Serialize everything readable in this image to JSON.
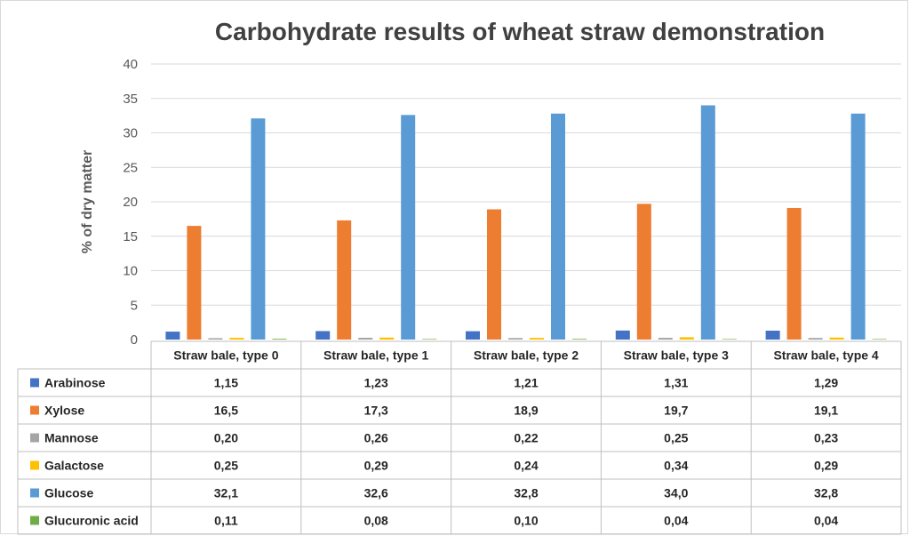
{
  "chart_data": {
    "type": "bar",
    "title": "Carbohydrate results of wheat straw demonstration",
    "ylabel": "% of dry matter",
    "ylim": [
      0,
      40
    ],
    "yticks": [
      "0",
      "5",
      "10",
      "15",
      "20",
      "25",
      "30",
      "35",
      "40"
    ],
    "grid": true,
    "legend": "data-table",
    "categories": [
      "Straw bale, type 0",
      "Straw bale, type 1",
      "Straw bale, type 2",
      "Straw bale, type 3",
      "Straw bale, type 4"
    ],
    "series": [
      {
        "name": "Arabinose",
        "color": "#4472c4",
        "values": [
          1.15,
          1.23,
          1.21,
          1.31,
          1.29
        ],
        "labels": [
          "1,15",
          "1,23",
          "1,21",
          "1,31",
          "1,29"
        ]
      },
      {
        "name": "Xylose",
        "color": "#ed7d31",
        "values": [
          16.5,
          17.3,
          18.9,
          19.7,
          19.1
        ],
        "labels": [
          "16,5",
          "17,3",
          "18,9",
          "19,7",
          "19,1"
        ]
      },
      {
        "name": "Mannose",
        "color": "#a5a5a5",
        "values": [
          0.2,
          0.26,
          0.22,
          0.25,
          0.23
        ],
        "labels": [
          "0,20",
          "0,26",
          "0,22",
          "0,25",
          "0,23"
        ]
      },
      {
        "name": "Galactose",
        "color": "#ffc000",
        "values": [
          0.25,
          0.29,
          0.24,
          0.34,
          0.29
        ],
        "labels": [
          "0,25",
          "0,29",
          "0,24",
          "0,34",
          "0,29"
        ]
      },
      {
        "name": "Glucose",
        "color": "#5b9bd5",
        "values": [
          32.1,
          32.6,
          32.8,
          34.0,
          32.8
        ],
        "labels": [
          "32,1",
          "32,6",
          "32,8",
          "34,0",
          "32,8"
        ]
      },
      {
        "name": "Glucuronic acid",
        "color": "#70ad47",
        "values": [
          0.11,
          0.08,
          0.1,
          0.04,
          0.04
        ],
        "labels": [
          "0,11",
          "0,08",
          "0,10",
          "0,04",
          "0,04"
        ]
      }
    ]
  }
}
